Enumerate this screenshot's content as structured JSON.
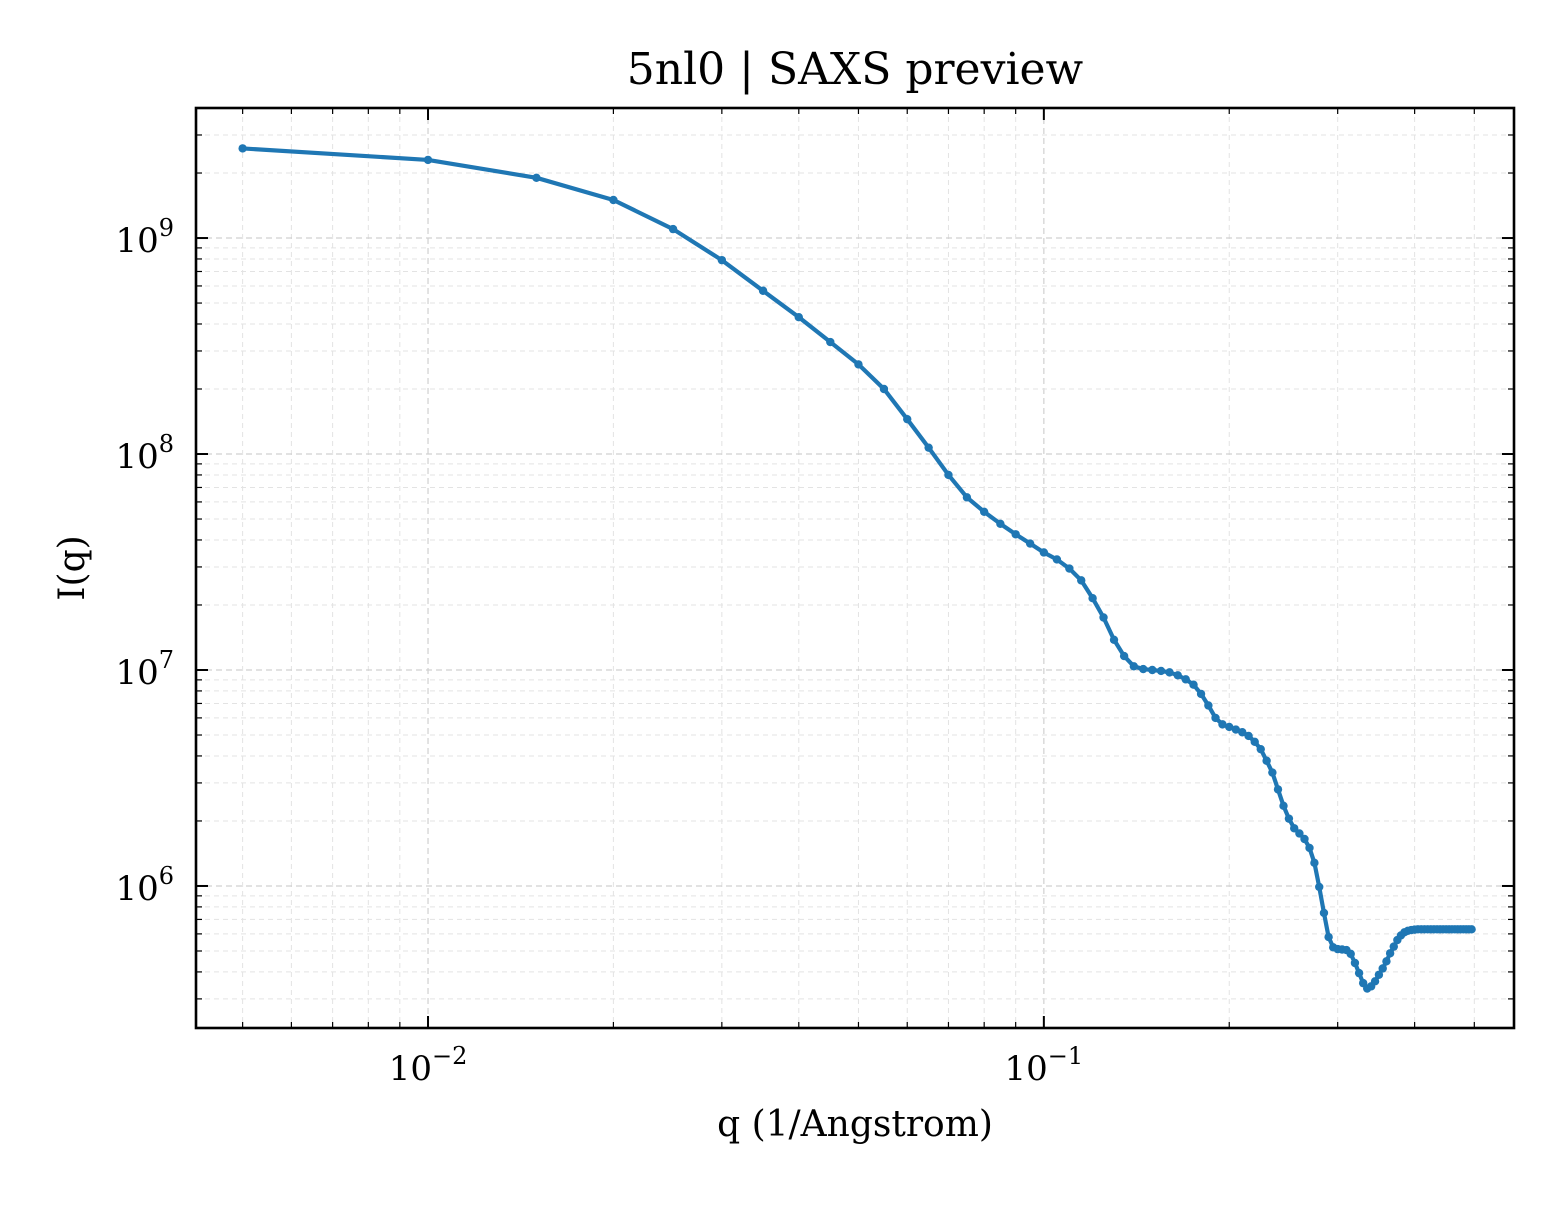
{
  "chart_data": {
    "type": "line",
    "title": "5nl0 | SAXS preview",
    "xlabel": "q (1/Angstrom)",
    "ylabel": "I(q)",
    "xscale": "log",
    "yscale": "log",
    "xlim": [
      0.0042,
      0.58
    ],
    "ylim": [
      220000,
      4000000000
    ],
    "grid": true,
    "color": "#1f77b4",
    "x_ticks": [
      {
        "base": "10",
        "exp": "−2",
        "value": 0.01
      },
      {
        "base": "10",
        "exp": "−1",
        "value": 0.1
      }
    ],
    "y_ticks": [
      {
        "base": "10",
        "exp": "6",
        "value": 1000000
      },
      {
        "base": "10",
        "exp": "7",
        "value": 10000000
      },
      {
        "base": "10",
        "exp": "8",
        "value": 100000000
      },
      {
        "base": "10",
        "exp": "9",
        "value": 1000000000
      }
    ],
    "series": [
      {
        "x": [
          0.005,
          0.01,
          0.015,
          0.02,
          0.025,
          0.03,
          0.035,
          0.04,
          0.045,
          0.05,
          0.055,
          0.06,
          0.065,
          0.07,
          0.075,
          0.08,
          0.085,
          0.09,
          0.095,
          0.1,
          0.105,
          0.11,
          0.115,
          0.12,
          0.125,
          0.13,
          0.135,
          0.14,
          0.145,
          0.15,
          0.155,
          0.16,
          0.165,
          0.17,
          0.175,
          0.18,
          0.185,
          0.19,
          0.195,
          0.2,
          0.205,
          0.21,
          0.215,
          0.22,
          0.225,
          0.23,
          0.235,
          0.24,
          0.245,
          0.25,
          0.255,
          0.26,
          0.265,
          0.27,
          0.275,
          0.28,
          0.285,
          0.29,
          0.295,
          0.3,
          0.305,
          0.31,
          0.315,
          0.32,
          0.325,
          0.33,
          0.335,
          0.34,
          0.345,
          0.35,
          0.355,
          0.36,
          0.365,
          0.37,
          0.375,
          0.38,
          0.385,
          0.39,
          0.395,
          0.4,
          0.405,
          0.41,
          0.415,
          0.42,
          0.425,
          0.43,
          0.435,
          0.44,
          0.445,
          0.45,
          0.455,
          0.46,
          0.465,
          0.47,
          0.475,
          0.48,
          0.485,
          0.49,
          0.495
        ],
        "y": [
          2600000000,
          2300000000,
          1900000000,
          1500000000,
          1100000000,
          790000000,
          570000000,
          430000000,
          330000000,
          260000000,
          200000000,
          145000000,
          107000000,
          80000000,
          63000000,
          54000000,
          47500000,
          42500000,
          38500000,
          35000000,
          32500000,
          29500000,
          26000000,
          21500000,
          17500000,
          13800000,
          11600000,
          10400000,
          10100000,
          10000000,
          9900000,
          9750000,
          9450000,
          9050000,
          8550000,
          7750000,
          6850000,
          6000000,
          5600000,
          5450000,
          5300000,
          5150000,
          4950000,
          4650000,
          4300000,
          3800000,
          3350000,
          2800000,
          2350000,
          2050000,
          1850000,
          1750000,
          1650000,
          1500000,
          1280000,
          990000,
          750000,
          580000,
          520000,
          510000,
          508000,
          505000,
          485000,
          440000,
          395000,
          355000,
          335000,
          343000,
          362000,
          388000,
          415000,
          448000,
          488000,
          524000,
          562000,
          590000,
          610000,
          620000,
          625000,
          628000,
          630000,
          630000,
          630000,
          630000,
          630000,
          630000,
          630000,
          630000,
          630000,
          630000,
          630000,
          630000,
          630000,
          630000,
          630000,
          630000,
          630000,
          630000,
          630000
        ]
      }
    ]
  }
}
